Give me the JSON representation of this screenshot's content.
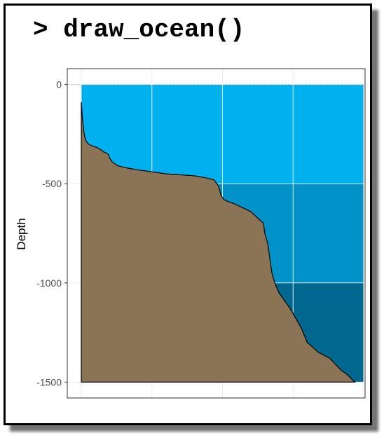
{
  "title": "> draw_ocean()",
  "chart_data": {
    "type": "area",
    "title": "",
    "xlabel": "",
    "ylabel": "Depth",
    "ylim": [
      -1580,
      80
    ],
    "yticks": [
      0,
      -500,
      -1000,
      -1500
    ],
    "xticks_shown": false,
    "sea_level": 0,
    "ocean_layers": [
      {
        "name": "layer-1",
        "top": 0,
        "bottom": -500,
        "color": "#00b0ef"
      },
      {
        "name": "layer-2",
        "top": -500,
        "bottom": -1000,
        "color": "#0092c8"
      },
      {
        "name": "layer-3",
        "top": -1000,
        "bottom": -1500,
        "color": "#00688e"
      }
    ],
    "seafloor_color": "#8b7355",
    "x_range": [
      0,
      100
    ],
    "seafloor_profile": {
      "x": [
        0,
        0.3,
        0.8,
        1.5,
        2.5,
        4,
        6,
        8,
        9.5,
        10,
        11,
        13,
        16,
        20,
        25,
        30,
        35,
        40,
        44,
        47,
        48.5,
        49,
        49.5,
        50.5,
        52,
        54,
        57,
        60,
        63,
        64.5,
        65,
        66,
        66.5,
        67.5,
        68.5,
        70,
        72,
        74,
        76,
        78,
        80,
        84,
        88,
        90,
        92,
        94,
        95.5,
        96,
        97
      ],
      "depth": [
        -90,
        -150,
        -230,
        -280,
        -300,
        -310,
        -320,
        -340,
        -350,
        -370,
        -390,
        -410,
        -420,
        -430,
        -440,
        -450,
        -455,
        -460,
        -470,
        -480,
        -510,
        -530,
        -560,
        -580,
        -590,
        -600,
        -620,
        -640,
        -680,
        -700,
        -750,
        -800,
        -850,
        -950,
        -1000,
        -1050,
        -1090,
        -1130,
        -1180,
        -1230,
        -1300,
        -1350,
        -1380,
        -1410,
        -1440,
        -1460,
        -1480,
        -1490,
        -1500
      ]
    }
  }
}
